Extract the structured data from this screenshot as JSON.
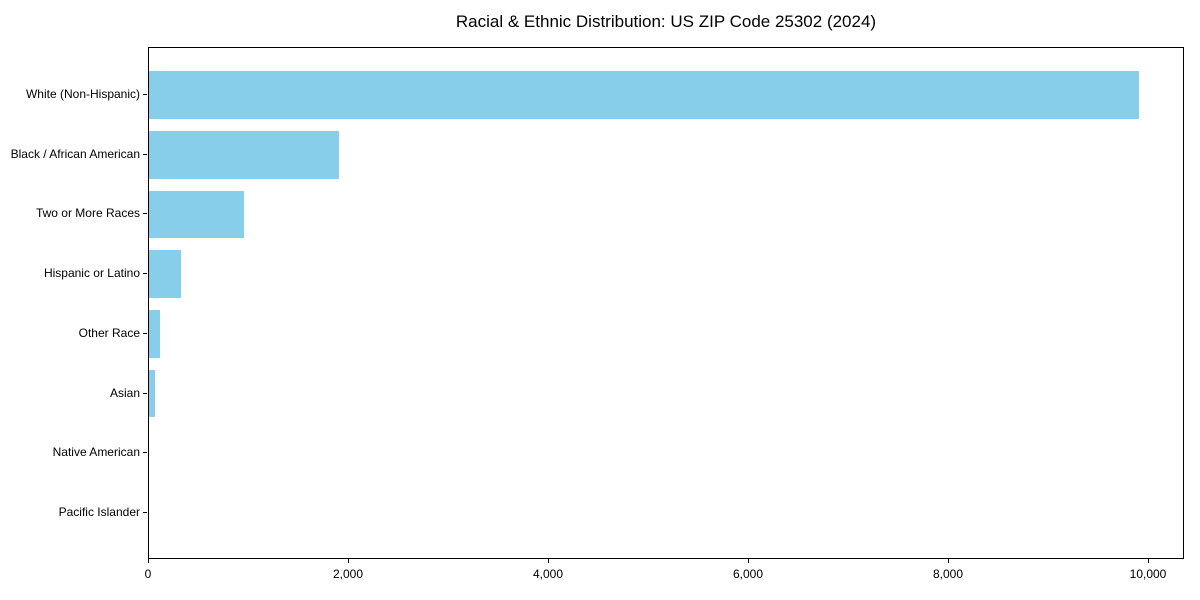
{
  "chart_data": {
    "type": "bar",
    "orientation": "horizontal",
    "title": "Racial & Ethnic Distribution: US ZIP Code 25302 (2024)",
    "categories": [
      "White (Non-Hispanic)",
      "Black / African American",
      "Two or More Races",
      "Hispanic or Latino",
      "Other Race",
      "Asian",
      "Native American",
      "Pacific Islander"
    ],
    "values": [
      9900,
      1900,
      950,
      320,
      110,
      60,
      0,
      0
    ],
    "xlabel": "",
    "ylabel": "",
    "xlim": [
      0,
      10360
    ],
    "xticks": [
      0,
      2000,
      4000,
      6000,
      8000,
      10000
    ],
    "xtick_labels": [
      "0",
      "2,000",
      "4,000",
      "6,000",
      "8,000",
      "10,000"
    ],
    "bar_color": "#87CEEB",
    "text_color": "#000000",
    "grid": false,
    "legend": "none",
    "frame": "full-box"
  }
}
